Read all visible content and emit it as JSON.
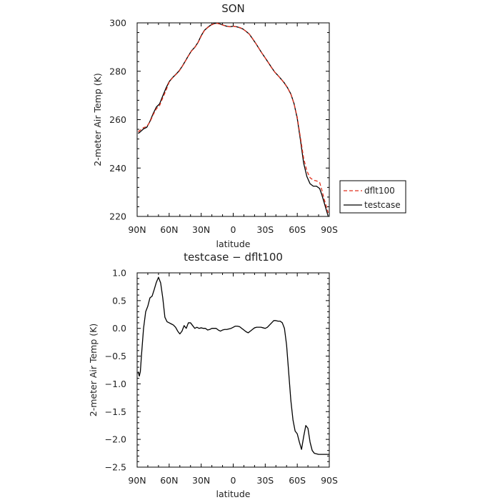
{
  "chart_data": [
    {
      "type": "line",
      "title": "SON",
      "xlabel": "latitude",
      "ylabel": "2-meter Air Temp (K)",
      "xlim": [
        90,
        -90
      ],
      "ylim": [
        220,
        300
      ],
      "x_ticks": [
        90,
        60,
        30,
        0,
        -30,
        -60,
        -90
      ],
      "x_tick_labels": [
        "90N",
        "60N",
        "30N",
        "0",
        "30S",
        "60S",
        "90S"
      ],
      "y_ticks": [
        220,
        240,
        260,
        280,
        300
      ],
      "y_tick_labels": [
        "220",
        "240",
        "260",
        "280",
        "300"
      ],
      "legend_position": "right, outside plot",
      "series": [
        {
          "name": "dflt100",
          "color": "#e0301e",
          "dash": "dashed",
          "x": [
            89,
            87,
            84,
            81,
            78,
            75,
            72,
            69,
            66,
            63,
            60,
            57,
            54,
            51,
            48,
            45,
            42,
            39,
            36,
            33,
            30,
            27,
            24,
            21,
            18,
            15,
            12,
            9,
            6,
            3,
            0,
            -3,
            -6,
            -9,
            -12,
            -15,
            -18,
            -21,
            -24,
            -27,
            -30,
            -33,
            -36,
            -39,
            -42,
            -45,
            -48,
            -51,
            -54,
            -57,
            -60,
            -63,
            -66,
            -69,
            -72,
            -75,
            -78,
            -81,
            -83,
            -85,
            -87,
            -89
          ],
          "y": [
            255,
            255.7,
            256.7,
            257.2,
            259,
            262,
            264.5,
            265.8,
            269,
            272,
            275.5,
            277.2,
            278.5,
            279.8,
            281.8,
            284,
            286.3,
            288.4,
            289.8,
            291.8,
            294.5,
            296.8,
            298,
            299,
            299.6,
            299.8,
            299.4,
            299,
            298.6,
            298.4,
            298.6,
            298.4,
            298.1,
            297.5,
            296.5,
            295.4,
            293.6,
            291.6,
            289.5,
            287.4,
            285.5,
            283.5,
            281.4,
            279.6,
            278.2,
            276.7,
            275,
            273,
            270.5,
            266.5,
            261,
            252.5,
            244,
            238.8,
            236,
            235,
            234.7,
            234,
            231,
            227.5,
            224.5,
            221.5
          ]
        },
        {
          "name": "testcase",
          "color": "#000000",
          "dash": "solid",
          "x": [
            89,
            87,
            84,
            81,
            78,
            75,
            72,
            69,
            66,
            63,
            60,
            57,
            54,
            51,
            48,
            45,
            42,
            39,
            36,
            33,
            30,
            27,
            24,
            21,
            18,
            15,
            12,
            9,
            6,
            3,
            0,
            -3,
            -6,
            -9,
            -12,
            -15,
            -18,
            -21,
            -24,
            -27,
            -30,
            -33,
            -36,
            -39,
            -42,
            -45,
            -48,
            -51,
            -54,
            -57,
            -60,
            -63,
            -66,
            -69,
            -72,
            -75,
            -78,
            -81,
            -83,
            -85,
            -87,
            -89
          ],
          "y": [
            254.3,
            255,
            256.2,
            256.8,
            259.3,
            262.5,
            265.2,
            266.5,
            269.8,
            273,
            275.7,
            277.3,
            278.6,
            280,
            281.9,
            284.1,
            286.4,
            288.5,
            289.9,
            291.9,
            294.7,
            296.9,
            298.1,
            299.1,
            299.7,
            299.9,
            299.5,
            299,
            298.6,
            298.4,
            298.6,
            298.4,
            298,
            297.5,
            296.5,
            295.4,
            293.5,
            291.6,
            289.5,
            287.4,
            285.5,
            283.5,
            281.5,
            279.6,
            278.2,
            276.7,
            275.1,
            273.1,
            270.6,
            266.6,
            260.5,
            251.5,
            242,
            236.5,
            233.5,
            232.5,
            232.5,
            231.5,
            229,
            226,
            223,
            220
          ]
        }
      ]
    },
    {
      "type": "line",
      "title": "testcase − dflt100",
      "xlabel": "latitude",
      "ylabel": "2-meter Air Temp (K)",
      "xlim": [
        90,
        -90
      ],
      "ylim": [
        -2.5,
        1.0
      ],
      "x_ticks": [
        90,
        60,
        30,
        0,
        -30,
        -60,
        -90
      ],
      "x_tick_labels": [
        "90N",
        "60N",
        "30N",
        "0",
        "30S",
        "60S",
        "90S"
      ],
      "y_ticks": [
        -2.5,
        -2.0,
        -1.5,
        -1.0,
        -0.5,
        0.0,
        0.5,
        1.0
      ],
      "y_tick_labels": [
        "−2.5",
        "−2.0",
        "−1.5",
        "−1.0",
        "−0.5",
        "0.0",
        "0.5",
        "1.0"
      ],
      "series": [
        {
          "color": "#000000",
          "dash": "solid",
          "x": [
            89,
            88,
            87,
            86,
            84,
            82,
            80,
            78,
            76,
            74,
            72,
            70,
            68,
            66,
            64,
            62,
            60,
            58,
            56,
            54,
            52,
            50,
            48,
            46,
            44,
            42,
            40,
            38,
            36,
            34,
            32,
            30,
            28,
            26,
            24,
            22,
            20,
            18,
            16,
            14,
            12,
            10,
            8,
            6,
            4,
            2,
            0,
            -2,
            -4,
            -6,
            -8,
            -10,
            -12,
            -14,
            -16,
            -18,
            -20,
            -22,
            -24,
            -26,
            -28,
            -30,
            -32,
            -34,
            -36,
            -38,
            -40,
            -42,
            -44,
            -46,
            -48,
            -50,
            -52,
            -54,
            -56,
            -58,
            -60,
            -62,
            -64,
            -66,
            -68,
            -70,
            -72,
            -74,
            -76,
            -78,
            -80,
            -82,
            -84,
            -86,
            -88,
            -90
          ],
          "y": [
            -0.78,
            -0.86,
            -0.78,
            -0.5,
            0.0,
            0.3,
            0.4,
            0.55,
            0.58,
            0.7,
            0.83,
            0.92,
            0.82,
            0.55,
            0.2,
            0.12,
            0.1,
            0.08,
            0.06,
            0.02,
            -0.05,
            -0.1,
            -0.05,
            0.05,
            0.0,
            0.1,
            0.1,
            0.05,
            0.0,
            0.02,
            0.0,
            0.01,
            0.0,
            0.0,
            -0.03,
            -0.02,
            0.0,
            0.0,
            0.0,
            -0.03,
            -0.05,
            -0.03,
            -0.02,
            -0.02,
            -0.01,
            0.0,
            0.02,
            0.04,
            0.04,
            0.03,
            0.0,
            -0.03,
            -0.06,
            -0.08,
            -0.05,
            -0.02,
            0.01,
            0.02,
            0.02,
            0.02,
            0.01,
            0.0,
            0.02,
            0.06,
            0.1,
            0.14,
            0.14,
            0.13,
            0.13,
            0.1,
            0.0,
            -0.3,
            -0.8,
            -1.3,
            -1.65,
            -1.85,
            -1.9,
            -2.05,
            -2.18,
            -1.95,
            -1.75,
            -1.8,
            -2.05,
            -2.2,
            -2.25,
            -2.26,
            -2.27,
            -2.27,
            -2.27,
            -2.27,
            -2.27,
            -2.27
          ]
        }
      ]
    }
  ]
}
